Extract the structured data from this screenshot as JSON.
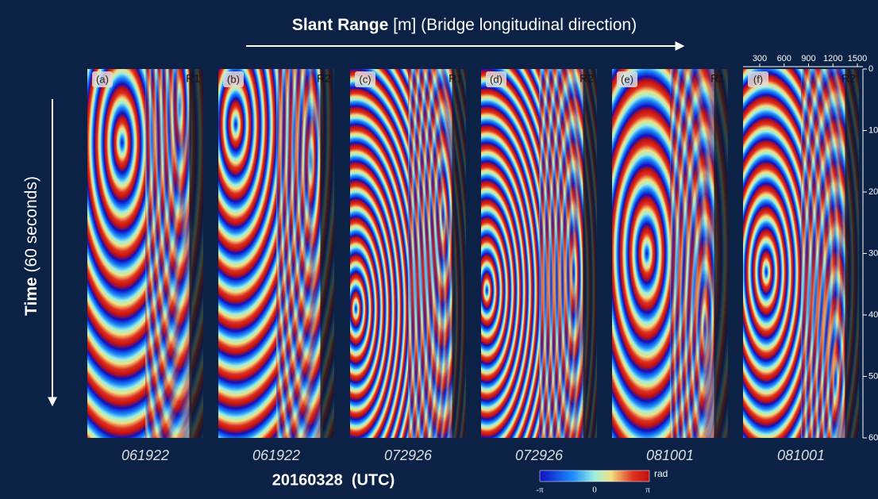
{
  "header": {
    "title_bold": "Slant Range",
    "title_rest": "[m] (Bridge longitudinal direction)"
  },
  "y_label": {
    "bold": "Time",
    "rest": "(60 seconds)"
  },
  "panels": [
    {
      "label": "(a)",
      "radar": "R1",
      "time": "061922"
    },
    {
      "label": "(b)",
      "radar": "R2",
      "time": "061922"
    },
    {
      "label": "(c)",
      "radar": "R1",
      "time": "072926"
    },
    {
      "label": "(d)",
      "radar": "R2",
      "time": "072926"
    },
    {
      "label": "(e)",
      "radar": "R1",
      "time": "081001"
    },
    {
      "label": "(f)",
      "radar": "R2",
      "time": "081001"
    }
  ],
  "date": "20160328  (UTC)",
  "colorbar": {
    "min": "-π",
    "mid": "0",
    "max": "π",
    "unit": "rad"
  },
  "time_axis": {
    "ticks": [
      0,
      10,
      20,
      30,
      40,
      50,
      60
    ]
  },
  "range_axis": {
    "ticks": [
      300,
      600,
      900,
      1200,
      1500
    ]
  }
}
